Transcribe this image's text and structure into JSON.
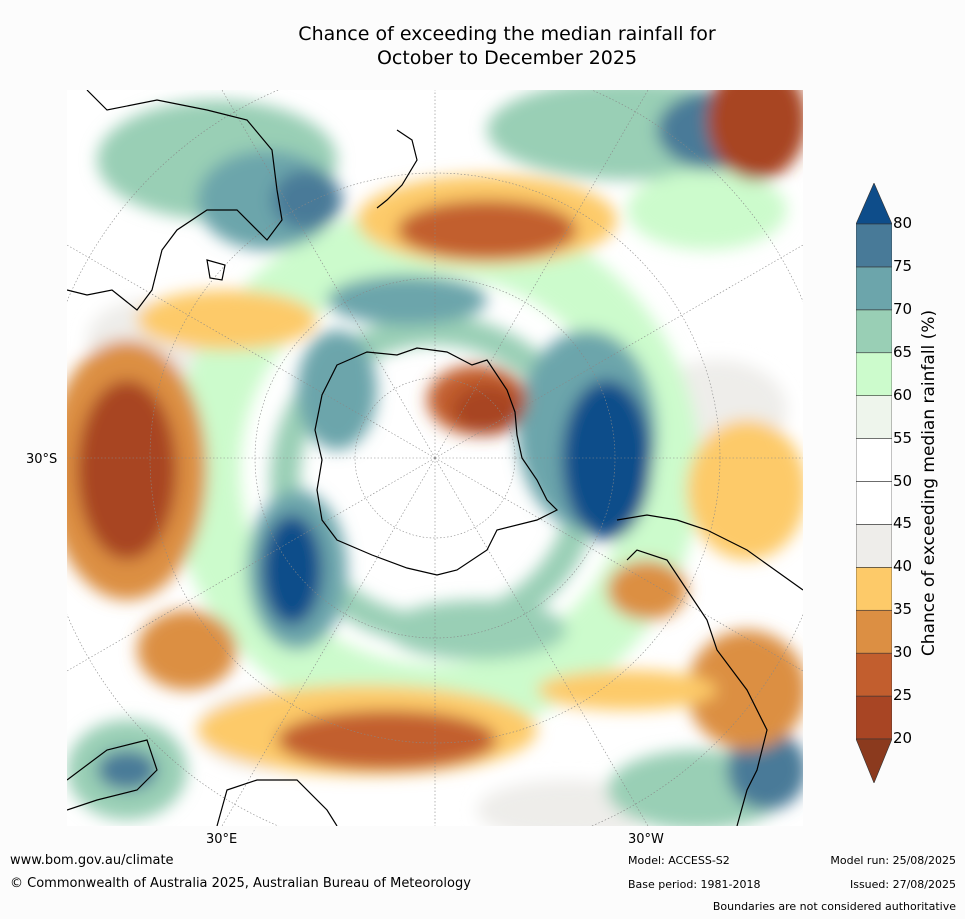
{
  "title_line1": "Chance of exceeding the median rainfall for",
  "title_line2": "October to December 2025",
  "map": {
    "lat_label": "30°S",
    "lon_label_east": "30°E",
    "lon_label_west": "30°W",
    "projection": "south polar stereographic"
  },
  "colorbar": {
    "title": "Chance of exceeding median rainfall (%)",
    "ticks": [
      "20",
      "25",
      "30",
      "35",
      "40",
      "45",
      "50",
      "55",
      "60",
      "65",
      "70",
      "75",
      "80"
    ],
    "colors": [
      "#8b3a1e",
      "#a84524",
      "#c25e2e",
      "#dc8f43",
      "#fdca69",
      "#eeedea",
      "#ffffff",
      "#ffffff",
      "#eef5ec",
      "#ccfbcc",
      "#99cfb5",
      "#6ca5ab",
      "#487a98",
      "#0e4d8a"
    ]
  },
  "footer": {
    "url": "www.bom.gov.au/climate",
    "copyright": "© Commonwealth of Australia 2025, Australian Bureau of Meteorology",
    "model": "Model: ACCESS-S2",
    "base_period": "Base period: 1981-2018",
    "model_run": "Model run: 25/08/2025",
    "issued": "Issued: 27/08/2025",
    "disclaimer": "Boundaries are not considered authoritative"
  }
}
